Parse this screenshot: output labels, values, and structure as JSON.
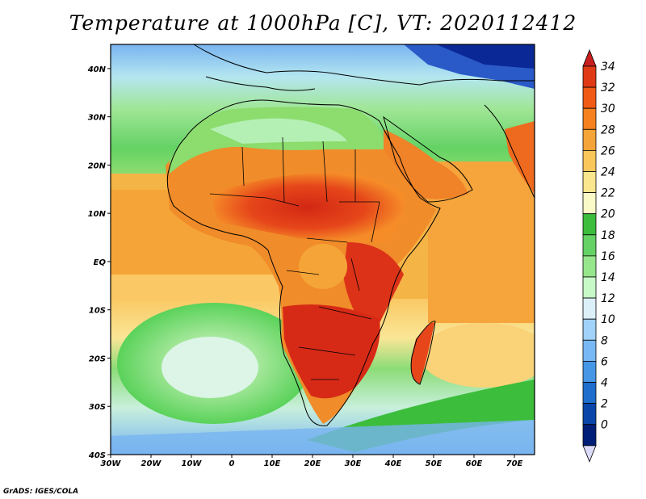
{
  "title": "Temperature at 1000hPa [C], VT: 2020112412",
  "credit": "GrADS: IGES/COLA",
  "map": {
    "lon_range": [
      -30,
      75
    ],
    "lat_range": [
      -40,
      45
    ],
    "lon_ticks": [
      "30W",
      "20W",
      "10W",
      "0",
      "10E",
      "20E",
      "30E",
      "40E",
      "50E",
      "60E",
      "70E"
    ],
    "lat_ticks": [
      "40N",
      "30N",
      "20N",
      "10N",
      "EQ",
      "10S",
      "20S",
      "30S",
      "40S"
    ]
  },
  "colorbar": {
    "labels": [
      "34",
      "32",
      "30",
      "28",
      "26",
      "24",
      "22",
      "20",
      "18",
      "16",
      "14",
      "12",
      "10",
      "8",
      "6",
      "4",
      "2",
      "0"
    ],
    "colors": [
      "#c81e1e",
      "#e03a14",
      "#f05a14",
      "#f5821e",
      "#f5a537",
      "#fac85a",
      "#fae68c",
      "#fafac8",
      "#3cbe3c",
      "#64d264",
      "#96e68c",
      "#c8fac8",
      "#dcf0fa",
      "#a0d2fa",
      "#78b9f5",
      "#4696e6",
      "#1e6ecd",
      "#0a46aa",
      "#001e78",
      "#dcdcfa"
    ]
  }
}
